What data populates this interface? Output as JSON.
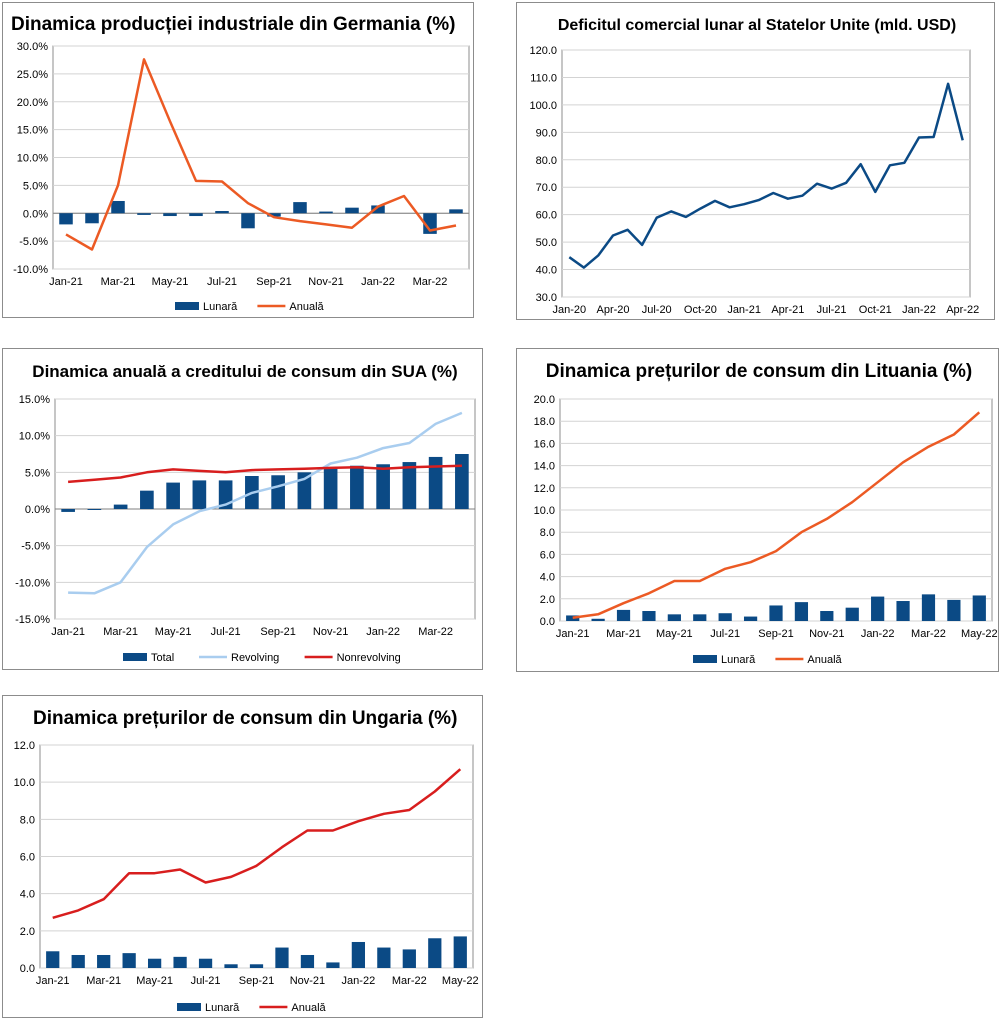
{
  "colors": {
    "navy": "#0b4a85",
    "orange": "#ec5a24",
    "lightblue": "#a9cdef",
    "red": "#d81e1e",
    "grid": "#d3d3d3"
  },
  "chart_data": [
    {
      "id": "germany",
      "type": "bar+line",
      "title": "Dinamica producției industriale din Germania (%)",
      "categories": [
        "Jan-21",
        "Feb-21",
        "Mar-21",
        "Apr-21",
        "May-21",
        "Jun-21",
        "Jul-21",
        "Aug-21",
        "Sep-21",
        "Oct-21",
        "Nov-21",
        "Dec-21",
        "Jan-22",
        "Feb-22",
        "Mar-22",
        "Apr-22"
      ],
      "x_tick_labels": [
        "Jan-21",
        "",
        "Mar-21",
        "",
        "May-21",
        "",
        "Jul-21",
        "",
        "Sep-21",
        "",
        "Nov-21",
        "",
        "Jan-22",
        "",
        "Mar-22",
        ""
      ],
      "ylim": [
        -10,
        30
      ],
      "y_ticks": [
        -10,
        -5,
        0,
        5,
        10,
        15,
        20,
        25,
        30
      ],
      "y_tick_labels": [
        "-10.0%",
        "-5.0%",
        "0.0%",
        "5.0%",
        "10.0%",
        "15.0%",
        "20.0%",
        "25.0%",
        "30.0%"
      ],
      "grid": true,
      "series": [
        {
          "name": "Lunară",
          "kind": "bar",
          "color": "#0b4a85",
          "values": [
            -2.0,
            -1.8,
            2.2,
            -0.3,
            -0.5,
            -0.5,
            0.4,
            -2.7,
            -0.6,
            2.0,
            0.3,
            1.0,
            1.4,
            0.0,
            -3.7,
            0.7
          ]
        },
        {
          "name": "Anuală",
          "kind": "line",
          "color": "#ec5a24",
          "values": [
            -3.8,
            -6.5,
            5.0,
            27.6,
            16.5,
            5.8,
            5.7,
            1.8,
            -0.7,
            -1.4,
            -2.0,
            -2.6,
            1.2,
            3.1,
            -3.1,
            -2.2
          ]
        }
      ],
      "legend": "bottom"
    },
    {
      "id": "usa_trade",
      "type": "line",
      "title": "Deficitul comercial lunar al Statelor Unite (mld. USD)",
      "categories": [
        "Jan-20",
        "Feb-20",
        "Mar-20",
        "Apr-20",
        "May-20",
        "Jun-20",
        "Jul-20",
        "Aug-20",
        "Sep-20",
        "Oct-20",
        "Nov-20",
        "Dec-20",
        "Jan-21",
        "Feb-21",
        "Mar-21",
        "Apr-21",
        "May-21",
        "Jun-21",
        "Jul-21",
        "Aug-21",
        "Sep-21",
        "Oct-21",
        "Nov-21",
        "Dec-21",
        "Jan-22",
        "Feb-22",
        "Mar-22",
        "Apr-22"
      ],
      "x_tick_labels": [
        "Jan-20",
        "",
        "",
        "Apr-20",
        "",
        "",
        "Jul-20",
        "",
        "",
        "Oct-20",
        "",
        "",
        "Jan-21",
        "",
        "",
        "Apr-21",
        "",
        "",
        "Jul-21",
        "",
        "",
        "Oct-21",
        "",
        "",
        "Jan-22",
        "",
        "",
        "Apr-22"
      ],
      "ylim": [
        30,
        120
      ],
      "y_ticks": [
        30,
        40,
        50,
        60,
        70,
        80,
        90,
        100,
        110,
        120
      ],
      "y_tick_labels": [
        "30.0",
        "40.0",
        "50.0",
        "60.0",
        "70.0",
        "80.0",
        "90.0",
        "100.0",
        "110.0",
        "120.0"
      ],
      "grid": true,
      "series": [
        {
          "kind": "line",
          "color": "#0b4a85",
          "values": [
            44.5,
            40.7,
            45.2,
            52.4,
            54.5,
            49.0,
            58.9,
            61.2,
            59.2,
            62.2,
            65.0,
            62.7,
            63.8,
            65.3,
            67.9,
            65.8,
            66.9,
            71.3,
            69.5,
            71.6,
            78.4,
            68.3,
            78.0,
            78.9,
            88.1,
            88.3,
            107.7,
            87.1
          ]
        }
      ],
      "legend": "none"
    },
    {
      "id": "usa_credit",
      "type": "bar+line",
      "title": "Dinamica anuală a creditului de consum din SUA (%)",
      "categories": [
        "Jan-21",
        "Feb-21",
        "Mar-21",
        "Apr-21",
        "May-21",
        "Jun-21",
        "Jul-21",
        "Aug-21",
        "Sep-21",
        "Oct-21",
        "Nov-21",
        "Dec-21",
        "Jan-22",
        "Feb-22",
        "Mar-22",
        "Apr-22"
      ],
      "x_tick_labels": [
        "Jan-21",
        "",
        "Mar-21",
        "",
        "May-21",
        "",
        "Jul-21",
        "",
        "Sep-21",
        "",
        "Nov-21",
        "",
        "Jan-22",
        "",
        "Mar-22",
        ""
      ],
      "ylim": [
        -15,
        15
      ],
      "y_ticks": [
        -15,
        -10,
        -5,
        0,
        5,
        10,
        15
      ],
      "y_tick_labels": [
        "-15.0%",
        "-10.0%",
        "-5.0%",
        "0.0%",
        "5.0%",
        "10.0%",
        "15.0%"
      ],
      "grid": true,
      "series": [
        {
          "name": "Total",
          "kind": "bar",
          "color": "#0b4a85",
          "values": [
            -0.4,
            -0.1,
            0.6,
            2.5,
            3.6,
            3.9,
            3.9,
            4.5,
            4.6,
            5.0,
            5.6,
            5.9,
            6.1,
            6.4,
            7.1,
            7.5
          ]
        },
        {
          "name": "Revolving",
          "kind": "line",
          "color": "#a9cdef",
          "values": [
            -11.4,
            -11.5,
            -10.0,
            -5.2,
            -2.1,
            -0.3,
            0.6,
            2.2,
            3.1,
            4.1,
            6.2,
            7.0,
            8.3,
            9.0,
            11.6,
            13.1
          ]
        },
        {
          "name": "Nonrevolving",
          "kind": "line",
          "color": "#d81e1e",
          "values": [
            3.7,
            4.0,
            4.3,
            5.0,
            5.4,
            5.2,
            5.0,
            5.3,
            5.4,
            5.5,
            5.6,
            5.7,
            5.5,
            5.7,
            5.8,
            5.9
          ]
        }
      ],
      "legend": "bottom"
    },
    {
      "id": "lithuania",
      "type": "bar+line",
      "title": "Dinamica prețurilor de consum din Lituania (%)",
      "categories": [
        "Jan-21",
        "Feb-21",
        "Mar-21",
        "Apr-21",
        "May-21",
        "Jun-21",
        "Jul-21",
        "Aug-21",
        "Sep-21",
        "Oct-21",
        "Nov-21",
        "Dec-21",
        "Jan-22",
        "Feb-22",
        "Mar-22",
        "Apr-22",
        "May-22"
      ],
      "x_tick_labels": [
        "Jan-21",
        "",
        "Mar-21",
        "",
        "May-21",
        "",
        "Jul-21",
        "",
        "Sep-21",
        "",
        "Nov-21",
        "",
        "Jan-22",
        "",
        "Mar-22",
        "",
        "May-22"
      ],
      "ylim": [
        0,
        20
      ],
      "y_ticks": [
        0,
        2,
        4,
        6,
        8,
        10,
        12,
        14,
        16,
        18,
        20
      ],
      "y_tick_labels": [
        "0.0",
        "2.0",
        "4.0",
        "6.0",
        "8.0",
        "10.0",
        "12.0",
        "14.0",
        "16.0",
        "18.0",
        "20.0"
      ],
      "grid": true,
      "series": [
        {
          "name": "Lunară",
          "kind": "bar",
          "color": "#0b4a85",
          "values": [
            0.5,
            0.2,
            1.0,
            0.9,
            0.6,
            0.6,
            0.7,
            0.4,
            1.4,
            1.7,
            0.9,
            1.2,
            2.2,
            1.8,
            2.4,
            1.9,
            2.3
          ]
        },
        {
          "name": "Anuală",
          "kind": "line",
          "color": "#ec5a24",
          "values": [
            0.3,
            0.6,
            1.6,
            2.5,
            3.6,
            3.6,
            4.7,
            5.3,
            6.3,
            8.0,
            9.2,
            10.7,
            12.5,
            14.3,
            15.7,
            16.8,
            18.8
          ]
        }
      ],
      "legend": "bottom"
    },
    {
      "id": "hungary",
      "type": "bar+line",
      "title": "Dinamica prețurilor de consum din Ungaria (%)",
      "categories": [
        "Jan-21",
        "Feb-21",
        "Mar-21",
        "Apr-21",
        "May-21",
        "Jun-21",
        "Jul-21",
        "Aug-21",
        "Sep-21",
        "Oct-21",
        "Nov-21",
        "Dec-21",
        "Jan-22",
        "Feb-22",
        "Mar-22",
        "Apr-22",
        "May-22"
      ],
      "x_tick_labels": [
        "Jan-21",
        "",
        "Mar-21",
        "",
        "May-21",
        "",
        "Jul-21",
        "",
        "Sep-21",
        "",
        "Nov-21",
        "",
        "Jan-22",
        "",
        "Mar-22",
        "",
        "May-22"
      ],
      "ylim": [
        0,
        12
      ],
      "y_ticks": [
        0,
        2,
        4,
        6,
        8,
        10,
        12
      ],
      "y_tick_labels": [
        "0.0",
        "2.0",
        "4.0",
        "6.0",
        "8.0",
        "10.0",
        "12.0"
      ],
      "grid": true,
      "series": [
        {
          "name": "Lunară",
          "kind": "bar",
          "color": "#0b4a85",
          "values": [
            0.9,
            0.7,
            0.7,
            0.8,
            0.5,
            0.6,
            0.5,
            0.2,
            0.2,
            1.1,
            0.7,
            0.3,
            1.4,
            1.1,
            1.0,
            1.6,
            1.7
          ]
        },
        {
          "name": "Anuală",
          "kind": "line",
          "color": "#d81e1e",
          "values": [
            2.7,
            3.1,
            3.7,
            5.1,
            5.1,
            5.3,
            4.6,
            4.9,
            5.5,
            6.5,
            7.4,
            7.4,
            7.9,
            8.3,
            8.5,
            9.5,
            10.7
          ]
        }
      ],
      "legend": "bottom"
    }
  ]
}
